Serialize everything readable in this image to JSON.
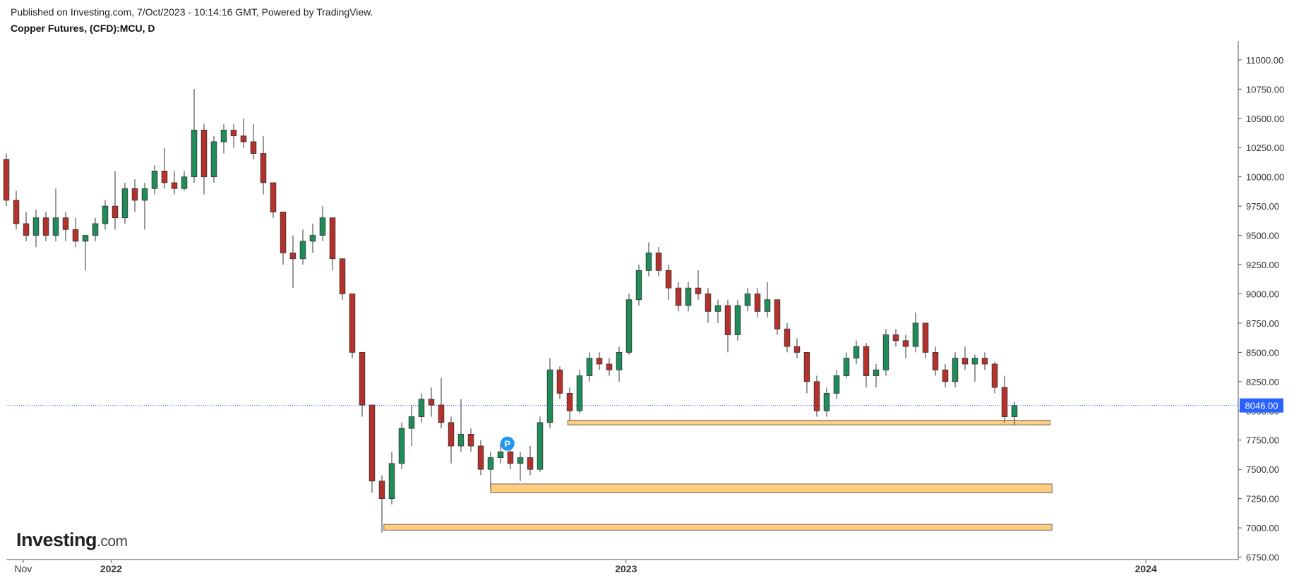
{
  "header": {
    "published": "Published on Investing.com, 7/Oct/2023 - 10:14:16 GMT, Powered by TradingView.",
    "symbol": "Copper Futures, (CFD):MCU, D"
  },
  "logo": {
    "main": "Investing",
    "suffix": ".com"
  },
  "chart_data": {
    "type": "candlestick",
    "up_color": "#1f8c5a",
    "down_color": "#b5312c",
    "xlim": [
      0,
      124.5
    ],
    "xticks": [
      {
        "value": 1.7,
        "label": "Nov"
      },
      {
        "value": 10.6,
        "label": "2022"
      },
      {
        "value": 62.7,
        "label": "2023"
      },
      {
        "value": 115.3,
        "label": "2024"
      }
    ],
    "ylim": [
      6729,
      11162
    ],
    "yticks": [
      {
        "value": 6750,
        "label": "6750.00"
      },
      {
        "value": 7000,
        "label": "7000.00"
      },
      {
        "value": 7250,
        "label": "7250.00"
      },
      {
        "value": 7500,
        "label": "7500.00"
      },
      {
        "value": 7750,
        "label": "7750.00"
      },
      {
        "value": 8000,
        "label": "8000.00"
      },
      {
        "value": 8250,
        "label": "8250.00"
      },
      {
        "value": 8500,
        "label": "8500.00"
      },
      {
        "value": 8750,
        "label": "8750.00"
      },
      {
        "value": 9000,
        "label": "9000.00"
      },
      {
        "value": 9250,
        "label": "9250.00"
      },
      {
        "value": 9500,
        "label": "9500.00"
      },
      {
        "value": 9750,
        "label": "9750.00"
      },
      {
        "value": 10000,
        "label": "10000.00"
      },
      {
        "value": 10250,
        "label": "10250.00"
      },
      {
        "value": 10500,
        "label": "10500.00"
      },
      {
        "value": 10750,
        "label": "10750.00"
      },
      {
        "value": 11000,
        "label": "11000.00"
      }
    ],
    "last_price": {
      "value": 8046,
      "label": "8046.00",
      "color": "#2962ff"
    },
    "zone_color": "#ffcc80",
    "zones": [
      {
        "x": [
          56.8,
          105.6
        ],
        "y": [
          7880,
          7920
        ]
      },
      {
        "x": [
          49.0,
          105.8
        ],
        "y": [
          7300,
          7375
        ]
      },
      {
        "x": [
          38.2,
          105.8
        ],
        "y": [
          6980,
          7030
        ]
      }
    ],
    "marker": {
      "label": "P",
      "x": 50.7,
      "y": 7720,
      "color": "#2196f3"
    },
    "open": [
      10150,
      9800,
      9600,
      9500,
      9650,
      9500,
      9650,
      9550,
      9450,
      9500,
      9600,
      9750,
      9650,
      9900,
      9800,
      9900,
      10050,
      9950,
      9900,
      10000,
      10400,
      10000,
      10300,
      10400,
      10350,
      10300,
      10200,
      9950,
      9700,
      9350,
      9300,
      9450,
      9500,
      9650,
      9300,
      9000,
      8500,
      8050,
      7400,
      7250,
      7550,
      7850,
      7950,
      8100,
      8050,
      7900,
      7700,
      7800,
      7700,
      7500,
      7600,
      7650,
      7550,
      7600,
      7500,
      7900,
      8350,
      8150,
      8000,
      8300,
      8450,
      8400,
      8350,
      8500,
      8950,
      9200,
      9350,
      9200,
      9050,
      8900,
      9050,
      9000,
      8850,
      8900,
      8650,
      8900,
      9000,
      8850,
      8950,
      8700,
      8550,
      8500,
      8250,
      8000,
      8150,
      8300,
      8450,
      8550,
      8300,
      8350,
      8650,
      8600,
      8550,
      8750,
      8500,
      8350,
      8250,
      8450,
      8400,
      8450,
      8400,
      8200,
      7950
    ],
    "high": [
      10200,
      9880,
      9700,
      9720,
      9700,
      9900,
      9700,
      9650,
      9500,
      9650,
      9800,
      10050,
      9950,
      9980,
      9950,
      10100,
      10250,
      10050,
      10050,
      10750,
      10450,
      10350,
      10450,
      10450,
      10500,
      10450,
      10350,
      9950,
      9700,
      9500,
      9550,
      9600,
      9750,
      9650,
      9300,
      9000,
      8500,
      8050,
      7450,
      7650,
      7900,
      8050,
      8150,
      8200,
      8280,
      7950,
      8100,
      7850,
      7750,
      7650,
      7720,
      7680,
      7650,
      7700,
      7950,
      8450,
      8380,
      8200,
      8350,
      8500,
      8500,
      8450,
      8550,
      9000,
      9250,
      9440,
      9400,
      9250,
      9100,
      9100,
      9200,
      9050,
      8950,
      8950,
      8950,
      9050,
      9050,
      9100,
      8950,
      8750,
      8620,
      8500,
      8300,
      8200,
      8350,
      8500,
      8600,
      8580,
      8400,
      8700,
      8700,
      8650,
      8840,
      8750,
      8550,
      8400,
      8500,
      8550,
      8480,
      8500,
      8420,
      8300,
      8080
    ],
    "low": [
      9750,
      9550,
      9450,
      9400,
      9450,
      9450,
      9450,
      9400,
      9200,
      9450,
      9550,
      9550,
      9600,
      9700,
      9550,
      9850,
      9900,
      9850,
      9880,
      9950,
      9850,
      9950,
      10200,
      10250,
      10250,
      10150,
      9850,
      9650,
      9250,
      9050,
      9250,
      9350,
      9450,
      9200,
      8950,
      8450,
      7950,
      7300,
      6960,
      7200,
      7500,
      7700,
      7900,
      7950,
      7850,
      7550,
      7650,
      7650,
      7450,
      7330,
      7550,
      7500,
      7400,
      7450,
      7480,
      7850,
      8100,
      7920,
      7980,
      8250,
      8350,
      8300,
      8250,
      8480,
      8900,
      9150,
      9150,
      8950,
      8850,
      8850,
      8950,
      8750,
      8750,
      8500,
      8600,
      8850,
      8800,
      8800,
      8650,
      8500,
      8450,
      8150,
      7950,
      7950,
      8100,
      8280,
      8400,
      8200,
      8200,
      8300,
      8550,
      8450,
      8500,
      8450,
      8300,
      8200,
      8200,
      8350,
      8250,
      8350,
      8150,
      7900,
      7880
    ],
    "close": [
      9800,
      9600,
      9500,
      9650,
      9500,
      9650,
      9550,
      9450,
      9500,
      9600,
      9750,
      9650,
      9900,
      9800,
      9900,
      10050,
      9950,
      9900,
      10000,
      10400,
      10000,
      10300,
      10400,
      10350,
      10300,
      10200,
      9950,
      9700,
      9350,
      9300,
      9450,
      9500,
      9650,
      9300,
      9000,
      8500,
      8050,
      7400,
      7250,
      7550,
      7850,
      7950,
      8100,
      8050,
      7900,
      7700,
      7800,
      7700,
      7500,
      7600,
      7650,
      7550,
      7600,
      7500,
      7900,
      8350,
      8150,
      8000,
      8300,
      8450,
      8400,
      8350,
      8500,
      8950,
      9200,
      9350,
      9200,
      9050,
      8900,
      9050,
      9000,
      8850,
      8900,
      8650,
      8900,
      9000,
      8850,
      8950,
      8700,
      8550,
      8500,
      8250,
      8000,
      8150,
      8300,
      8450,
      8550,
      8300,
      8350,
      8650,
      8600,
      8550,
      8750,
      8500,
      8350,
      8250,
      8450,
      8400,
      8450,
      8400,
      8200,
      7950,
      8046
    ]
  }
}
